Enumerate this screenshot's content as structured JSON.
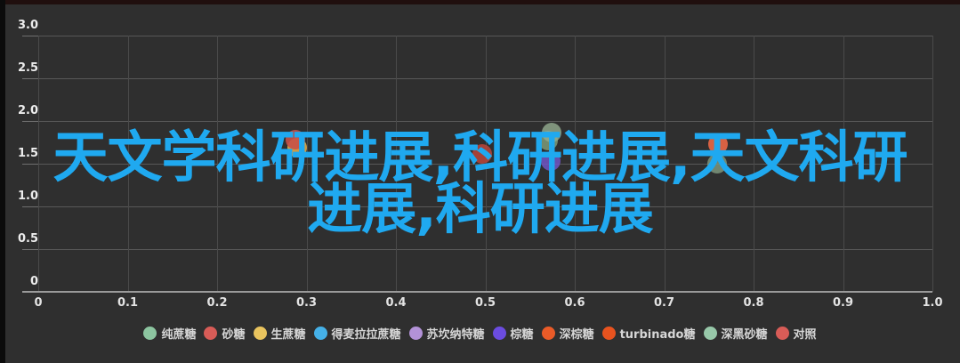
{
  "canvas": {
    "background": "#2f2f2f",
    "top_bar_color": "#200f0e",
    "left_bar_color": "#0b0b0b"
  },
  "overlay_title": {
    "full_text": "天文学科研进展,科研进展,天文科研进展,科研进展",
    "line1": "天文学科研进展,科研进展,天文科研",
    "line2": "进展,科研进展",
    "color": "#1fa9f0"
  },
  "chart_data": {
    "type": "scatter",
    "title": "",
    "xlabel": "",
    "ylabel": "",
    "xlim": [
      0,
      1.0
    ],
    "ylim": [
      0,
      3.0
    ],
    "x_ticks": [
      "0",
      "0.1",
      "0.2",
      "0.3",
      "0.4",
      "0.5",
      "0.6",
      "0.7",
      "0.8",
      "0.9",
      "1.0"
    ],
    "x_tick_values": [
      0,
      0.1,
      0.2,
      0.3,
      0.4,
      0.5,
      0.6,
      0.7,
      0.8,
      0.9,
      1.0
    ],
    "y_ticks": [
      "0",
      "0.5",
      "1.0",
      "1.5",
      "2.0",
      "2.5",
      "3.0"
    ],
    "y_tick_values": [
      0,
      0.5,
      1.0,
      1.5,
      2.0,
      2.5,
      3.0
    ],
    "grid": true,
    "legend_position": "bottom",
    "point_radius_px": 11,
    "points": [
      {
        "x": 0.29,
        "y": 1.69,
        "color": "rgba(224,167,70,0.9)"
      },
      {
        "x": 0.288,
        "y": 1.78,
        "color": "rgba(199,81,73,0.9)"
      },
      {
        "x": 0.497,
        "y": 1.61,
        "color": "rgba(178,69,58,0.9)"
      },
      {
        "x": 0.57,
        "y": 1.77,
        "color": "rgba(125,154,120,0.85)"
      },
      {
        "x": 0.574,
        "y": 1.86,
        "color": "rgba(147,173,144,0.8)"
      },
      {
        "x": 0.573,
        "y": 1.53,
        "color": "rgba(111,85,197,0.85)"
      },
      {
        "x": 0.759,
        "y": 1.5,
        "color": "rgba(125,149,125,0.85)"
      },
      {
        "x": 0.76,
        "y": 1.73,
        "color": "rgba(224,100,69,0.95)"
      }
    ]
  },
  "legend": {
    "items": [
      {
        "label": "纯蔗糖",
        "color": "#8cc5a0"
      },
      {
        "label": "砂糖",
        "color": "#d85c57"
      },
      {
        "label": "生蔗糖",
        "color": "#e9c45e"
      },
      {
        "label": "得麦拉拉蔗糖",
        "color": "#45b1e8"
      },
      {
        "label": "苏坎纳特糖",
        "color": "#b392d8"
      },
      {
        "label": "棕糖",
        "color": "#6b4ce0"
      },
      {
        "label": "深棕糖",
        "color": "#ea5b28"
      },
      {
        "label": "turbinado糖",
        "color": "#e8531f"
      },
      {
        "label": "深黑砂糖",
        "color": "#97c8a9"
      },
      {
        "label": "对照",
        "color": "#d85c57"
      }
    ]
  }
}
